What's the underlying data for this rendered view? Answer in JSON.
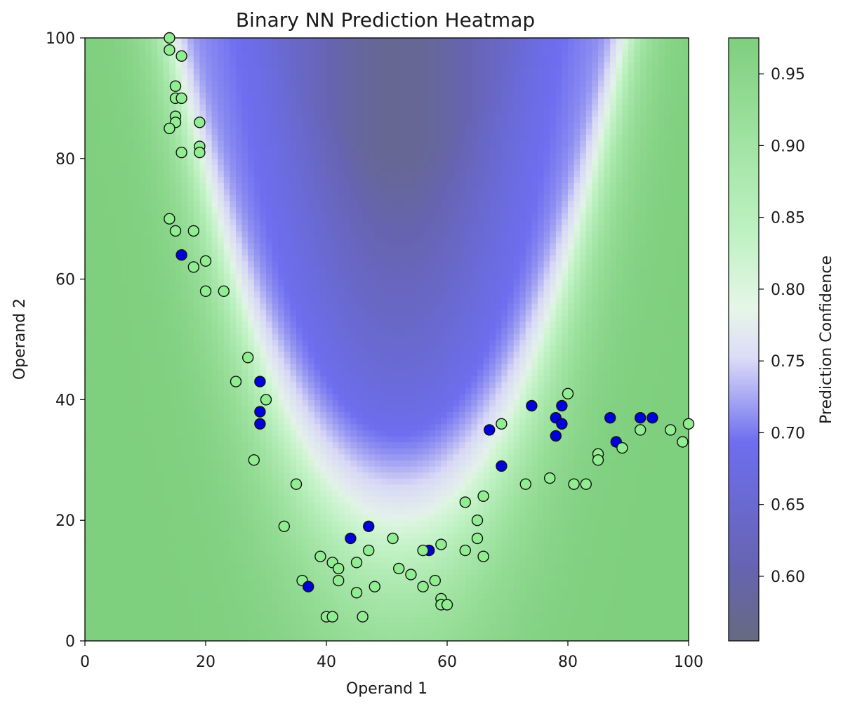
{
  "chart_data": {
    "type": "heatmap",
    "title": "Binary NN Prediction Heatmap",
    "xlabel": "Operand 1",
    "ylabel": "Operand 2",
    "xlim": [
      0,
      100
    ],
    "ylim": [
      0,
      100
    ],
    "x_ticks": [
      "0",
      "20",
      "40",
      "60",
      "80",
      "100"
    ],
    "y_ticks": [
      "0",
      "20",
      "40",
      "60",
      "80",
      "100"
    ],
    "colorbar": {
      "label": "Prediction Confidence",
      "range": [
        0.555,
        0.975
      ],
      "ticks": [
        "0.60",
        "0.65",
        "0.70",
        "0.75",
        "0.80",
        "0.85",
        "0.90",
        "0.95"
      ],
      "colors": {
        "low": "#666a80",
        "mid_blue": "#6e6ef0",
        "pale": "#e2e4f6",
        "light_green": "#c0f2c4",
        "high": "#7ecf7e"
      }
    },
    "legend": "none",
    "grid": false,
    "point_colors": {
      "class_0": "#90ee90",
      "class_1": "#0000dd"
    },
    "points": [
      {
        "x": 14,
        "y": 100,
        "c": 0
      },
      {
        "x": 14,
        "y": 98,
        "c": 0
      },
      {
        "x": 16,
        "y": 97,
        "c": 0
      },
      {
        "x": 15,
        "y": 92,
        "c": 0
      },
      {
        "x": 15,
        "y": 90,
        "c": 0
      },
      {
        "x": 16,
        "y": 90,
        "c": 0
      },
      {
        "x": 15,
        "y": 87,
        "c": 0
      },
      {
        "x": 15,
        "y": 86,
        "c": 0
      },
      {
        "x": 14,
        "y": 85,
        "c": 0
      },
      {
        "x": 19,
        "y": 86,
        "c": 0
      },
      {
        "x": 19,
        "y": 82,
        "c": 0
      },
      {
        "x": 19,
        "y": 81,
        "c": 0
      },
      {
        "x": 16,
        "y": 81,
        "c": 0
      },
      {
        "x": 14,
        "y": 70,
        "c": 0
      },
      {
        "x": 15,
        "y": 68,
        "c": 0
      },
      {
        "x": 18,
        "y": 68,
        "c": 0
      },
      {
        "x": 16,
        "y": 64,
        "c": 1
      },
      {
        "x": 18,
        "y": 62,
        "c": 0
      },
      {
        "x": 20,
        "y": 63,
        "c": 0
      },
      {
        "x": 20,
        "y": 58,
        "c": 0
      },
      {
        "x": 23,
        "y": 58,
        "c": 0
      },
      {
        "x": 27,
        "y": 47,
        "c": 0
      },
      {
        "x": 25,
        "y": 43,
        "c": 0
      },
      {
        "x": 29,
        "y": 43,
        "c": 1
      },
      {
        "x": 30,
        "y": 40,
        "c": 0
      },
      {
        "x": 29,
        "y": 38,
        "c": 1
      },
      {
        "x": 29,
        "y": 36,
        "c": 1
      },
      {
        "x": 28,
        "y": 30,
        "c": 0
      },
      {
        "x": 35,
        "y": 26,
        "c": 0
      },
      {
        "x": 33,
        "y": 19,
        "c": 0
      },
      {
        "x": 39,
        "y": 14,
        "c": 0
      },
      {
        "x": 41,
        "y": 13,
        "c": 0
      },
      {
        "x": 42,
        "y": 12,
        "c": 0
      },
      {
        "x": 42,
        "y": 10,
        "c": 0
      },
      {
        "x": 36,
        "y": 10,
        "c": 0
      },
      {
        "x": 37,
        "y": 9,
        "c": 1
      },
      {
        "x": 40,
        "y": 4,
        "c": 0
      },
      {
        "x": 41,
        "y": 4,
        "c": 0
      },
      {
        "x": 44,
        "y": 17,
        "c": 1
      },
      {
        "x": 47,
        "y": 19,
        "c": 1
      },
      {
        "x": 47,
        "y": 15,
        "c": 0
      },
      {
        "x": 45,
        "y": 13,
        "c": 0
      },
      {
        "x": 45,
        "y": 8,
        "c": 0
      },
      {
        "x": 46,
        "y": 4,
        "c": 0
      },
      {
        "x": 48,
        "y": 9,
        "c": 0
      },
      {
        "x": 51,
        "y": 17,
        "c": 0
      },
      {
        "x": 52,
        "y": 12,
        "c": 0
      },
      {
        "x": 54,
        "y": 11,
        "c": 0
      },
      {
        "x": 57,
        "y": 15,
        "c": 1
      },
      {
        "x": 56,
        "y": 15,
        "c": 0
      },
      {
        "x": 59,
        "y": 16,
        "c": 0
      },
      {
        "x": 56,
        "y": 9,
        "c": 0
      },
      {
        "x": 58,
        "y": 10,
        "c": 0
      },
      {
        "x": 59,
        "y": 7,
        "c": 0
      },
      {
        "x": 59,
        "y": 6,
        "c": 0
      },
      {
        "x": 60,
        "y": 6,
        "c": 0
      },
      {
        "x": 63,
        "y": 23,
        "c": 0
      },
      {
        "x": 63,
        "y": 15,
        "c": 0
      },
      {
        "x": 65,
        "y": 20,
        "c": 0
      },
      {
        "x": 65,
        "y": 17,
        "c": 0
      },
      {
        "x": 66,
        "y": 24,
        "c": 0
      },
      {
        "x": 66,
        "y": 14,
        "c": 0
      },
      {
        "x": 67,
        "y": 35,
        "c": 1
      },
      {
        "x": 69,
        "y": 36,
        "c": 0
      },
      {
        "x": 69,
        "y": 29,
        "c": 1
      },
      {
        "x": 73,
        "y": 26,
        "c": 0
      },
      {
        "x": 74,
        "y": 39,
        "c": 1
      },
      {
        "x": 77,
        "y": 27,
        "c": 0
      },
      {
        "x": 78,
        "y": 37,
        "c": 1
      },
      {
        "x": 79,
        "y": 39,
        "c": 1
      },
      {
        "x": 80,
        "y": 41,
        "c": 0
      },
      {
        "x": 79,
        "y": 36,
        "c": 1
      },
      {
        "x": 78,
        "y": 34,
        "c": 1
      },
      {
        "x": 81,
        "y": 26,
        "c": 0
      },
      {
        "x": 83,
        "y": 26,
        "c": 0
      },
      {
        "x": 85,
        "y": 31,
        "c": 0
      },
      {
        "x": 85,
        "y": 30,
        "c": 0
      },
      {
        "x": 87,
        "y": 37,
        "c": 1
      },
      {
        "x": 88,
        "y": 33,
        "c": 1
      },
      {
        "x": 89,
        "y": 32,
        "c": 0
      },
      {
        "x": 92,
        "y": 37,
        "c": 1
      },
      {
        "x": 94,
        "y": 37,
        "c": 1
      },
      {
        "x": 92,
        "y": 35,
        "c": 0
      },
      {
        "x": 97,
        "y": 35,
        "c": 0
      },
      {
        "x": 99,
        "y": 33,
        "c": 0
      },
      {
        "x": 100,
        "y": 36,
        "c": 0
      }
    ]
  }
}
